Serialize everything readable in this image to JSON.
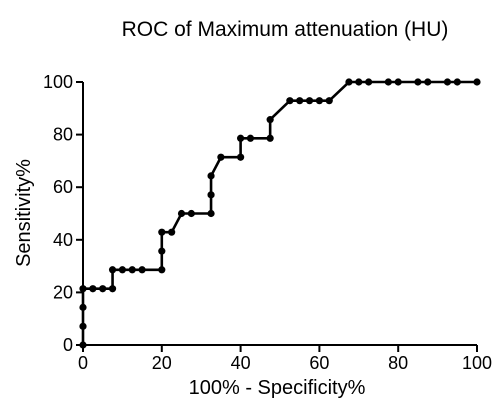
{
  "chart_data": {
    "type": "line",
    "title": "ROC of Maximum attenuation (HU)",
    "xlabel": "100% - Specificity%",
    "ylabel": "Sensitivity%",
    "xlim": [
      0,
      100
    ],
    "ylim": [
      0,
      100
    ],
    "x_ticks": [
      "0",
      "20",
      "40",
      "60",
      "80",
      "100"
    ],
    "y_ticks": [
      "0",
      "20",
      "40",
      "60",
      "80",
      "100"
    ],
    "grid": false,
    "legend": "none",
    "line_color": "#000000",
    "series": [
      {
        "points": [
          [
            0,
            0
          ],
          [
            0,
            7.1
          ],
          [
            0,
            14.3
          ],
          [
            0,
            21.4
          ],
          [
            2.5,
            21.4
          ],
          [
            5,
            21.4
          ],
          [
            7.5,
            21.4
          ],
          [
            7.5,
            28.6
          ],
          [
            10,
            28.6
          ],
          [
            12.5,
            28.6
          ],
          [
            15,
            28.6
          ],
          [
            20,
            28.6
          ],
          [
            20,
            35.7
          ],
          [
            20,
            42.9
          ],
          [
            22.5,
            42.9
          ],
          [
            25,
            50
          ],
          [
            27.5,
            50
          ],
          [
            32.5,
            50
          ],
          [
            32.5,
            57.1
          ],
          [
            32.5,
            64.3
          ],
          [
            35,
            71.4
          ],
          [
            40,
            71.4
          ],
          [
            40,
            78.6
          ],
          [
            42.5,
            78.6
          ],
          [
            47.5,
            78.6
          ],
          [
            47.5,
            85.7
          ],
          [
            52.5,
            92.9
          ],
          [
            55,
            92.9
          ],
          [
            57.5,
            92.9
          ],
          [
            60,
            92.9
          ],
          [
            62.5,
            92.9
          ],
          [
            67.5,
            100
          ],
          [
            70,
            100
          ],
          [
            72.5,
            100
          ],
          [
            77.5,
            100
          ],
          [
            80,
            100
          ],
          [
            85,
            100
          ],
          [
            87.5,
            100
          ],
          [
            92.5,
            100
          ],
          [
            95,
            100
          ],
          [
            100,
            100
          ]
        ]
      }
    ]
  }
}
